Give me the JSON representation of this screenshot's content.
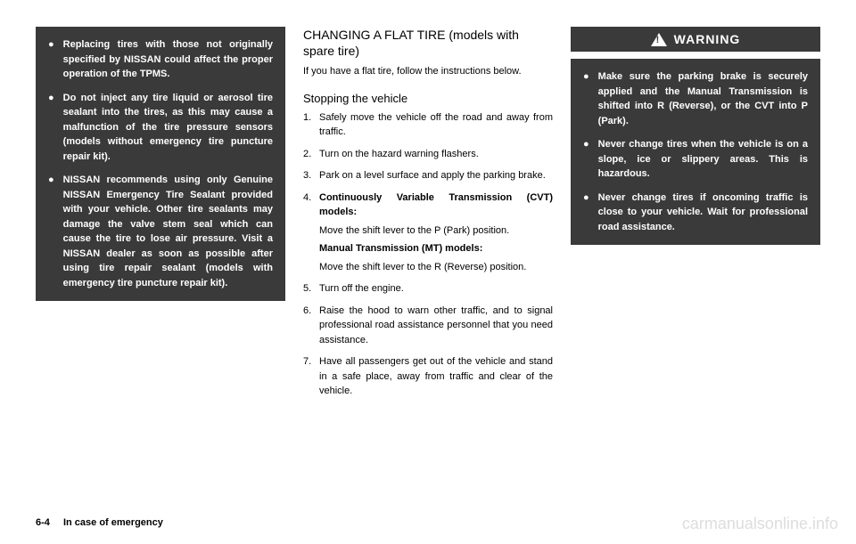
{
  "colors": {
    "dark_box_bg": "#3a3a3a",
    "dark_box_text": "#ffffff",
    "page_bg": "#ffffff",
    "body_text": "#000000",
    "watermark": "#dddddd"
  },
  "typography": {
    "body_fontsize": 11,
    "heading_fontsize": 14,
    "subheading_fontsize": 13,
    "warning_fontsize": 14,
    "footer_fontsize": 11,
    "watermark_fontsize": 18
  },
  "col1": {
    "bullets": [
      "Replacing tires with those not originally specified by NISSAN could affect the proper operation of the TPMS.",
      "Do not inject any tire liquid or aerosol tire sealant into the tires, as this may cause a malfunction of the tire pressure sensors (models without emergency tire puncture repair kit).",
      "NISSAN recommends using only Genuine NISSAN Emergency Tire Sealant provided with your vehicle. Other tire sealants may damage the valve stem seal which can cause the tire to lose air pressure. Visit a NISSAN dealer as soon as possible after using tire repair sealant (models with emergency tire puncture repair kit)."
    ]
  },
  "col2": {
    "heading": "CHANGING A FLAT TIRE (models with spare tire)",
    "intro": "If you have a flat tire, follow the instructions below.",
    "subheading": "Stopping the vehicle",
    "steps": [
      {
        "num": "1.",
        "text": "Safely move the vehicle off the road and away from traffic."
      },
      {
        "num": "2.",
        "text": "Turn on the hazard warning flashers."
      },
      {
        "num": "3.",
        "text": "Park on a level surface and apply the parking brake."
      },
      {
        "num": "4.",
        "bold1": "Continuously Variable Transmission (CVT) models:",
        "text1": "Move the shift lever to the P (Park) position.",
        "bold2": "Manual Transmission (MT) models:",
        "text2": "Move the shift lever to the R (Reverse) position."
      },
      {
        "num": "5.",
        "text": "Turn off the engine."
      },
      {
        "num": "6.",
        "text": "Raise the hood to warn other traffic, and to signal professional road assistance personnel that you need assistance."
      },
      {
        "num": "7.",
        "text": "Have all passengers get out of the vehicle and stand in a safe place, away from traffic and clear of the vehicle."
      }
    ]
  },
  "col3": {
    "warning_label": "WARNING",
    "bullets": [
      "Make sure the parking brake is securely applied and the Manual Transmission is shifted into R (Reverse), or the CVT into P (Park).",
      "Never change tires when the vehicle is on a slope, ice or slippery areas. This is hazardous.",
      "Never change tires if oncoming traffic is close to your vehicle. Wait for professional road assistance."
    ]
  },
  "footer": {
    "page": "6-4",
    "chapter": "In case of emergency"
  },
  "watermark": "carmanualsonline.info"
}
